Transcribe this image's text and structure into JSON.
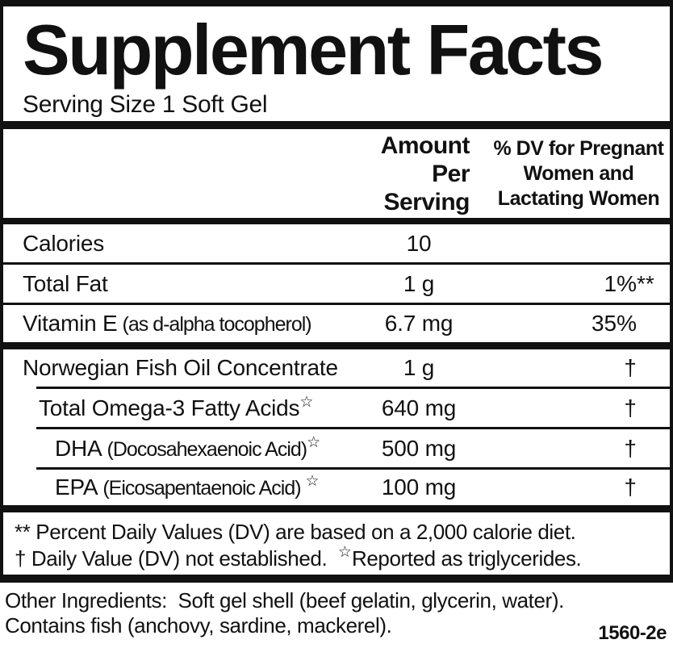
{
  "title": "Supplement Facts",
  "serving_size": "Serving Size 1 Soft Gel",
  "header": {
    "amount_line1": "Amount Per",
    "amount_line2": "Serving",
    "dv_line1": "% DV for Pregnant",
    "dv_line2": "Women and",
    "dv_line3": "Lactating Women"
  },
  "symbols": {
    "star": "☆",
    "dagger": "†"
  },
  "rows": [
    {
      "name": "Calories",
      "detail": "",
      "star": "",
      "amount": "10",
      "dv": "",
      "dv_suffix": ""
    },
    {
      "name": "Total Fat",
      "detail": "",
      "star": "",
      "amount": "1 g",
      "dv": "1%",
      "dv_suffix": "**"
    },
    {
      "name": "Vitamin E",
      "detail": "(as d-alpha tocopherol)",
      "star": "",
      "amount": "6.7 mg",
      "dv": "35%",
      "dv_suffix": ""
    },
    {
      "name": "Norwegian Fish Oil Concentrate",
      "detail": "",
      "star": "",
      "amount": "1 g",
      "dv": "†",
      "dv_suffix": ""
    },
    {
      "name": "Total Omega-3 Fatty Acids",
      "detail": "",
      "star": "☆",
      "amount": "640 mg",
      "dv": "†",
      "dv_suffix": ""
    },
    {
      "name": "DHA",
      "detail": "(Docosahexaenoic Acid)",
      "star": "☆",
      "amount": "500 mg",
      "dv": "†",
      "dv_suffix": ""
    },
    {
      "name": "EPA",
      "detail": "(Eicosapentaenoic Acid) ",
      "star": "☆",
      "amount": "100 mg",
      "dv": "†",
      "dv_suffix": ""
    }
  ],
  "footnotes": {
    "line1": "** Percent Daily Values (DV) are based on a 2,000 calorie diet.",
    "line2_part1": "† Daily Value (DV) not established.  ",
    "line2_star": "☆",
    "line2_part2": "Reported as triglycerides."
  },
  "other_ingredients": {
    "line1": "Other Ingredients:  Soft gel shell (beef gelatin, glycerin, water).",
    "line2": "Contains fish (anchovy, sardine, mackerel)."
  },
  "product_code": "1560-2e",
  "colors": {
    "text": "#111111",
    "background": "#ffffff",
    "border": "#111111"
  }
}
